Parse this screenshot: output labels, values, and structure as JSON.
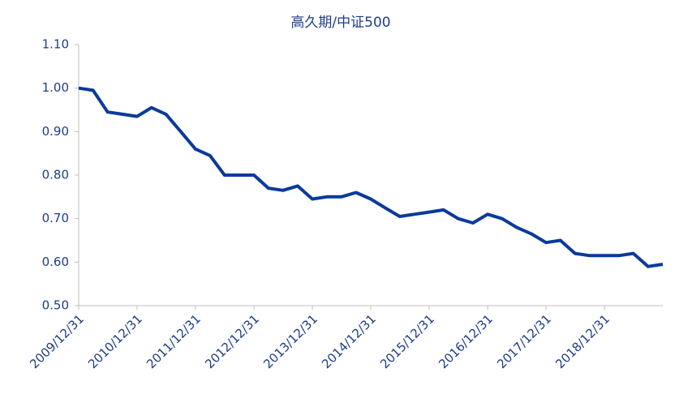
{
  "chart_data": {
    "type": "line",
    "title": "高久期/中证500",
    "x": [
      "2009/12/31",
      "2010/03/31",
      "2010/06/30",
      "2010/09/30",
      "2010/12/31",
      "2011/03/31",
      "2011/06/30",
      "2011/09/30",
      "2011/12/31",
      "2012/03/31",
      "2012/06/30",
      "2012/09/30",
      "2012/12/31",
      "2013/03/31",
      "2013/06/30",
      "2013/09/30",
      "2013/12/31",
      "2014/03/31",
      "2014/06/30",
      "2014/09/30",
      "2014/12/31",
      "2015/03/31",
      "2015/06/30",
      "2015/09/30",
      "2015/12/31",
      "2016/03/31",
      "2016/06/30",
      "2016/09/30",
      "2016/12/31",
      "2017/03/31",
      "2017/06/30",
      "2017/09/30",
      "2017/12/31",
      "2018/03/31",
      "2018/06/30",
      "2018/09/30",
      "2018/12/31",
      "2019/03/31",
      "2019/06/30",
      "2019/09/30",
      "2019/12/31"
    ],
    "series": [
      {
        "name": "高久期/中证500",
        "color": "#0a3a9a",
        "values": [
          1.0,
          0.995,
          0.945,
          0.94,
          0.935,
          0.955,
          0.94,
          0.9,
          0.86,
          0.845,
          0.8,
          0.8,
          0.8,
          0.77,
          0.765,
          0.775,
          0.745,
          0.75,
          0.75,
          0.76,
          0.745,
          0.725,
          0.705,
          0.71,
          0.715,
          0.72,
          0.7,
          0.69,
          0.71,
          0.7,
          0.68,
          0.665,
          0.645,
          0.65,
          0.62,
          0.615,
          0.615,
          0.615,
          0.62,
          0.59,
          0.595
        ]
      }
    ],
    "xlim": [
      "2009/12/31",
      "2019/12/31"
    ],
    "xticks": [
      "2009/12/31",
      "2010/12/31",
      "2011/12/31",
      "2012/12/31",
      "2013/12/31",
      "2014/12/31",
      "2015/12/31",
      "2016/12/31",
      "2017/12/31",
      "2018/12/31"
    ],
    "ylim": [
      0.5,
      1.1
    ],
    "yticks": [
      {
        "value": 0.5,
        "label": "0.50"
      },
      {
        "value": 0.6,
        "label": "0.60"
      },
      {
        "value": 0.7,
        "label": "0.70"
      },
      {
        "value": 0.8,
        "label": "0.80"
      },
      {
        "value": 0.9,
        "label": "0.90"
      },
      {
        "value": 1.0,
        "label": "1.00"
      },
      {
        "value": 1.1,
        "label": "1.10"
      }
    ],
    "grid": false
  }
}
